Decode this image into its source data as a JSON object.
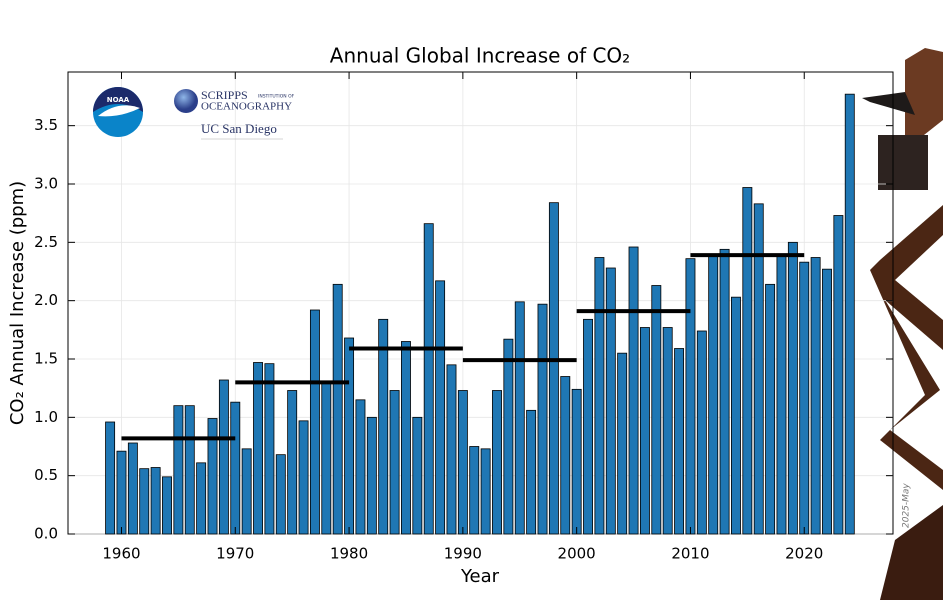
{
  "chart_data": {
    "type": "bar",
    "title": "Annual Global Increase of CO₂",
    "x_label": "Year",
    "y_label": "CO₂ Annual Increase (ppm)",
    "logos": [
      "NOAA",
      "SCRIPPS",
      "INSTITUTION OF",
      "OCEANOGRAPHY",
      "UC San Diego"
    ],
    "stamp": "2025-May",
    "color": "#1f77b4",
    "edge_color": "#000000",
    "x": [
      1959,
      1960,
      1961,
      1962,
      1963,
      1964,
      1965,
      1966,
      1967,
      1968,
      1969,
      1970,
      1971,
      1972,
      1973,
      1974,
      1975,
      1976,
      1977,
      1978,
      1979,
      1980,
      1981,
      1982,
      1983,
      1984,
      1985,
      1986,
      1987,
      1988,
      1989,
      1990,
      1991,
      1992,
      1993,
      1994,
      1995,
      1996,
      1997,
      1998,
      1999,
      2000,
      2001,
      2002,
      2003,
      2004,
      2005,
      2006,
      2007,
      2008,
      2009,
      2010,
      2011,
      2012,
      2013,
      2014,
      2015,
      2016,
      2017,
      2018,
      2019,
      2020,
      2021,
      2022,
      2023,
      2024
    ],
    "values": [
      0.96,
      0.71,
      0.78,
      0.56,
      0.57,
      0.49,
      1.1,
      1.1,
      0.61,
      0.99,
      1.32,
      1.13,
      0.73,
      1.47,
      1.46,
      0.68,
      1.23,
      0.97,
      1.92,
      1.29,
      2.14,
      1.68,
      1.15,
      1.0,
      1.84,
      1.23,
      1.65,
      1.0,
      2.66,
      2.17,
      1.45,
      1.23,
      0.75,
      0.73,
      1.23,
      1.67,
      1.99,
      1.06,
      1.97,
      2.84,
      1.35,
      1.24,
      1.84,
      2.37,
      2.28,
      1.55,
      2.46,
      1.77,
      2.13,
      1.77,
      1.59,
      2.36,
      1.74,
      2.4,
      2.44,
      2.03,
      2.97,
      2.83,
      2.14,
      2.4,
      2.5,
      2.33,
      2.37,
      2.27,
      2.73,
      3.77
    ],
    "decade_means": {
      "color": "#000000",
      "x_start": [
        1960,
        1970,
        1980,
        1990,
        2000,
        2010
      ],
      "x_end": [
        1970,
        1980,
        1990,
        2000,
        2010,
        2020
      ],
      "values": [
        0.82,
        1.3,
        1.59,
        1.49,
        1.91,
        2.39
      ]
    },
    "xlim": [
      1955.3,
      2027.8
    ],
    "ylim": [
      0,
      3.96
    ],
    "xticks": [
      1960,
      1970,
      1980,
      1990,
      2000,
      2010,
      2020
    ],
    "yticks": [
      {
        "value": 0,
        "label": "0.0"
      },
      0.5,
      {
        "value": 1,
        "label": "1.0"
      },
      1.5,
      {
        "value": 2,
        "label": "2.0"
      },
      2.5,
      {
        "value": 3,
        "label": "3.0"
      },
      3.5
    ],
    "grid": true
  }
}
